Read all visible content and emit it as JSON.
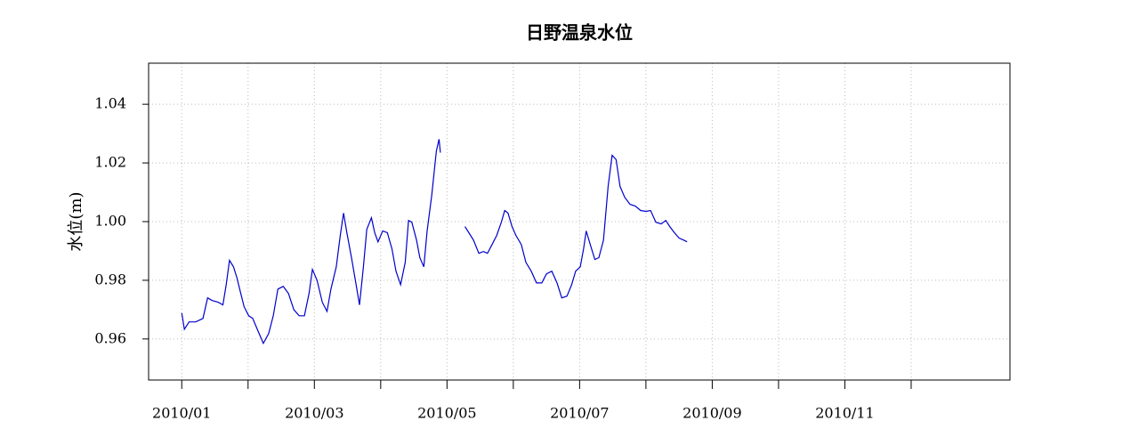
{
  "chart_data": {
    "type": "line",
    "title": "日野温泉水位",
    "ylabel": "水位(m)",
    "x": [
      1.0,
      1.04,
      1.11,
      1.21,
      1.32,
      1.39,
      1.46,
      1.55,
      1.62,
      1.67,
      1.72,
      1.78,
      1.83,
      1.89,
      1.94,
      2.01,
      2.07,
      2.15,
      2.23,
      2.31,
      2.38,
      2.45,
      2.53,
      2.61,
      2.69,
      2.77,
      2.85,
      2.92,
      2.97,
      3.04,
      3.12,
      3.19,
      3.25,
      3.33,
      3.39,
      3.44,
      3.49,
      3.56,
      3.63,
      3.68,
      3.74,
      3.79,
      3.86,
      3.91,
      3.96,
      4.03,
      4.1,
      4.17,
      4.23,
      4.3,
      4.37,
      4.42,
      4.47,
      4.54,
      4.59,
      4.65,
      4.7,
      4.77,
      4.84,
      4.88,
      4.9,
      5.2,
      5.27,
      5.33,
      5.4,
      5.48,
      5.55,
      5.61,
      5.68,
      5.75,
      5.82,
      5.87,
      5.92,
      5.98,
      6.04,
      6.12,
      6.19,
      6.27,
      6.35,
      6.43,
      6.5,
      6.58,
      6.66,
      6.73,
      6.81,
      6.88,
      6.94,
      7.01,
      7.06,
      7.1,
      7.16,
      7.23,
      7.29,
      7.36,
      7.43,
      7.49,
      7.55,
      7.61,
      7.68,
      7.76,
      7.84,
      7.92,
      8.0,
      8.07,
      8.15,
      8.23,
      8.3,
      8.36,
      8.43,
      8.5,
      8.57,
      8.62
    ],
    "series": [
      {
        "name": "水位",
        "color": "#0000cc",
        "values": [
          0.9688,
          0.9633,
          0.9658,
          0.9658,
          0.967,
          0.974,
          0.9731,
          0.9725,
          0.9716,
          0.9785,
          0.9868,
          0.9846,
          0.981,
          0.9755,
          0.971,
          0.9679,
          0.967,
          0.9627,
          0.9585,
          0.9618,
          0.9679,
          0.977,
          0.9779,
          0.9755,
          0.97,
          0.9679,
          0.9679,
          0.9755,
          0.9837,
          0.98,
          0.9725,
          0.9694,
          0.977,
          0.9846,
          0.9953,
          1.0029,
          0.9962,
          0.9877,
          0.9785,
          0.9716,
          0.9846,
          0.9974,
          1.0013,
          0.9962,
          0.9931,
          0.9968,
          0.9962,
          0.9907,
          0.9831,
          0.9785,
          0.9861,
          1.0004,
          0.9998,
          0.9937,
          0.9877,
          0.9846,
          0.9968,
          1.009,
          1.0241,
          1.0281,
          1.0235,
          null,
          0.9983,
          0.9962,
          0.9937,
          0.9892,
          0.9898,
          0.9892,
          0.9922,
          0.9953,
          0.9998,
          1.0038,
          1.0029,
          0.9983,
          0.9953,
          0.9922,
          0.9861,
          0.9831,
          0.9791,
          0.9791,
          0.9822,
          0.9831,
          0.9791,
          0.974,
          0.9746,
          0.9785,
          0.9831,
          0.9846,
          0.9907,
          0.9968,
          0.9922,
          0.9871,
          0.9877,
          0.9937,
          1.012,
          1.0226,
          1.0211,
          1.012,
          1.0083,
          1.0059,
          1.0053,
          1.0038,
          1.0035,
          1.0038,
          0.9998,
          0.9992,
          1.0004,
          0.9983,
          0.9962,
          0.9944,
          0.9937,
          0.9931
        ]
      }
    ],
    "xlim": [
      0.5,
      13.49
    ],
    "xticks": [
      {
        "value": 1,
        "label": "2010/01"
      },
      {
        "value": 2,
        "label": null
      },
      {
        "value": 3,
        "label": "2010/03"
      },
      {
        "value": 4,
        "label": null
      },
      {
        "value": 5,
        "label": "2010/05"
      },
      {
        "value": 6,
        "label": null
      },
      {
        "value": 7,
        "label": "2010/07"
      },
      {
        "value": 8,
        "label": null
      },
      {
        "value": 9,
        "label": "2010/09"
      },
      {
        "value": 10,
        "label": null
      },
      {
        "value": 11,
        "label": "2010/11"
      },
      {
        "value": 12,
        "label": null
      }
    ],
    "ylim": [
      0.946,
      1.054
    ],
    "yticks": [
      0.96,
      0.98,
      {
        "value": 1,
        "label": "1.00"
      },
      1.02,
      1.04
    ],
    "grid": true
  }
}
